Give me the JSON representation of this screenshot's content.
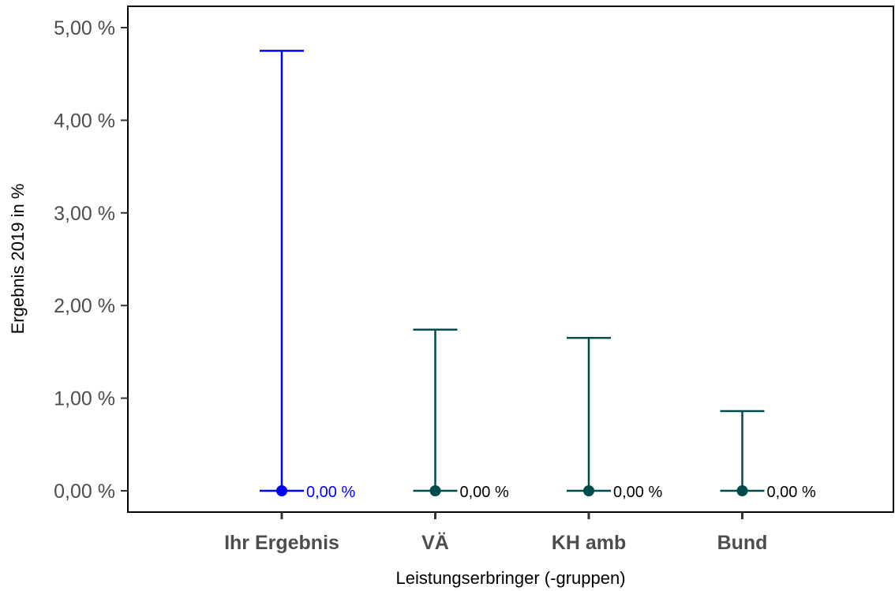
{
  "chart_data": {
    "type": "errorbar",
    "title": "",
    "xlabel": "Leistungserbringer (-gruppen)",
    "ylabel": "Ergebnis 2019 in %",
    "ylim": [
      -0.23,
      5.23
    ],
    "y_ticks": [
      0,
      1,
      2,
      3,
      4,
      5
    ],
    "y_tick_labels": [
      "0,00 %",
      "1,00 %",
      "2,00 %",
      "3,00 %",
      "4,00 %",
      "5,00 %"
    ],
    "grid": false,
    "legend": "none",
    "categories": [
      "Ihr Ergebnis",
      "VÄ",
      "KH amb",
      "Bund"
    ],
    "points": [
      {
        "category": "Ihr Ergebnis",
        "value": 0.0,
        "lower": 0.0,
        "upper": 4.75,
        "label": "0,00 %",
        "color": "#0000ff"
      },
      {
        "category": "VÄ",
        "value": 0.0,
        "lower": 0.0,
        "upper": 1.74,
        "label": "0,00 %",
        "color": "#004c4c"
      },
      {
        "category": "KH amb",
        "value": 0.0,
        "lower": 0.0,
        "upper": 1.65,
        "label": "0,00 %",
        "color": "#004c4c"
      },
      {
        "category": "Bund",
        "value": 0.0,
        "lower": 0.0,
        "upper": 0.86,
        "label": "0,00 %",
        "color": "#004c4c"
      }
    ],
    "colors": {
      "highlight": "#0000ff",
      "group": "#004c4c",
      "label_default": "#000000"
    }
  }
}
